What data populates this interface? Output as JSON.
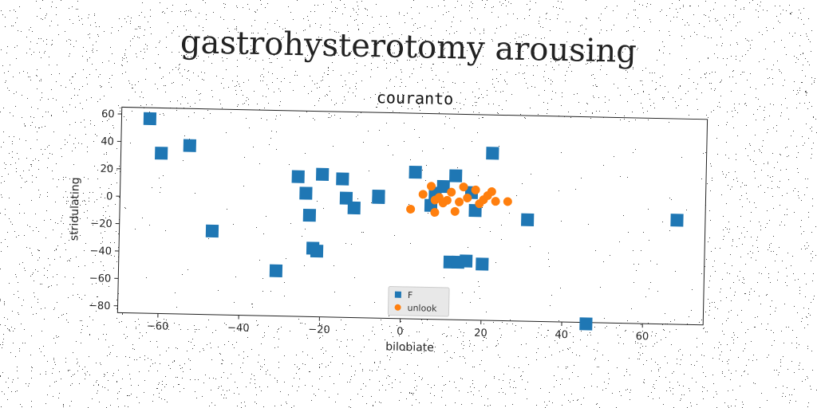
{
  "page_title": "gastrohysterotomy arousing",
  "chart_data": {
    "type": "scatter",
    "title": "couranto",
    "xlabel": "bilobiate",
    "ylabel": "stridulating",
    "xlim": [
      -70,
      75
    ],
    "ylim": [
      -85,
      65
    ],
    "xticks": [
      -60,
      -40,
      -20,
      0,
      20,
      40,
      60
    ],
    "yticks": [
      60,
      40,
      20,
      0,
      -20,
      -40,
      -60,
      -80
    ],
    "grid": false,
    "legend_position": "lower-center",
    "series": [
      {
        "name": "F",
        "marker": "square",
        "color": "#1f77b4",
        "points": [
          [
            -63,
            57
          ],
          [
            -60,
            32
          ],
          [
            -53,
            38
          ],
          [
            -47,
            -24
          ],
          [
            -31,
            -52
          ],
          [
            -26,
            17
          ],
          [
            -24,
            5
          ],
          [
            -23,
            -11
          ],
          [
            -22,
            -35
          ],
          [
            -21,
            -37
          ],
          [
            -20,
            19
          ],
          [
            -15,
            16
          ],
          [
            -14,
            2
          ],
          [
            -12,
            -5
          ],
          [
            -6,
            4
          ],
          [
            -6,
            3
          ],
          [
            3,
            22
          ],
          [
            7,
            -2
          ],
          [
            8,
            7
          ],
          [
            10,
            12
          ],
          [
            12,
            -43
          ],
          [
            13,
            20
          ],
          [
            14,
            -43
          ],
          [
            16,
            -42
          ],
          [
            17,
            8
          ],
          [
            18,
            -5
          ],
          [
            20,
            -44
          ],
          [
            22,
            37
          ],
          [
            31,
            -11
          ],
          [
            46,
            -86
          ],
          [
            68,
            -9
          ]
        ]
      },
      {
        "name": "unlook",
        "marker": "circle",
        "color": "#ff7f0e",
        "points": [
          [
            2,
            -5
          ],
          [
            5,
            6
          ],
          [
            7,
            12
          ],
          [
            8,
            -7
          ],
          [
            8,
            2
          ],
          [
            9,
            4
          ],
          [
            10,
            0
          ],
          [
            11,
            2
          ],
          [
            12,
            8
          ],
          [
            13,
            -6
          ],
          [
            14,
            1
          ],
          [
            15,
            12
          ],
          [
            16,
            4
          ],
          [
            18,
            10
          ],
          [
            19,
            0
          ],
          [
            20,
            3
          ],
          [
            21,
            6
          ],
          [
            22,
            9
          ],
          [
            23,
            2
          ],
          [
            26,
            2
          ]
        ]
      }
    ]
  }
}
